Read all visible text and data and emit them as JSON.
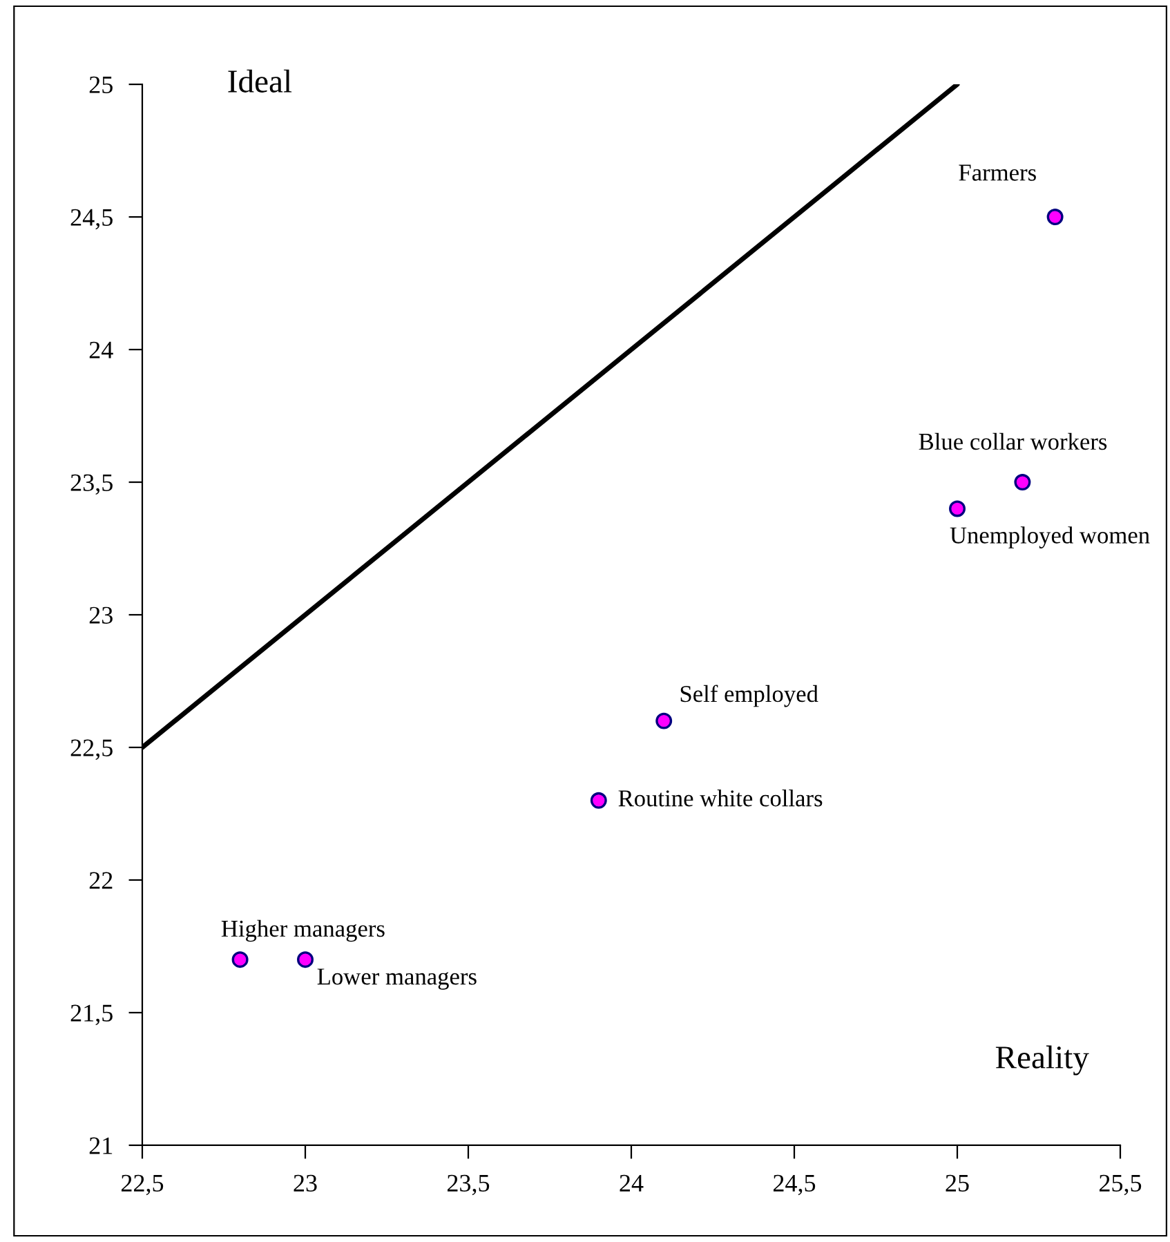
{
  "chart_data": {
    "type": "scatter",
    "xlabel": "Reality",
    "ylabel": "Ideal",
    "series": [
      {
        "color": "#ff00ff",
        "marker": "circle",
        "x": [
          25.3,
          25.2,
          25.0,
          24.1,
          23.9,
          22.8,
          23.0
        ],
        "values": [
          24.5,
          23.5,
          23.4,
          22.6,
          22.3,
          21.7,
          21.7
        ]
      },
      {
        "type": "line",
        "color": "#000000",
        "x": [
          22.5,
          25.0
        ],
        "values": [
          22.5,
          25.0
        ]
      }
    ],
    "annotations": [
      {
        "text": "Farmers",
        "x": 25.3,
        "y": 24.5
      },
      {
        "text": "Blue collar workers",
        "x": 25.2,
        "y": 23.5
      },
      {
        "text": "Unemployed women",
        "x": 25.0,
        "y": 23.4
      },
      {
        "text": "Self employed",
        "x": 24.1,
        "y": 22.6
      },
      {
        "text": "Routine white collars",
        "x": 23.9,
        "y": 22.3
      },
      {
        "text": "Higher managers",
        "x": 22.8,
        "y": 21.7
      },
      {
        "text": "Lower managers",
        "x": 23.0,
        "y": 21.7
      }
    ],
    "xlim": [
      22.5,
      25.5
    ],
    "ylim": [
      21,
      25
    ],
    "xticks": [
      {
        "value": 22.5,
        "label": "22,5"
      },
      23,
      {
        "value": 23.5,
        "label": "23,5"
      },
      24,
      {
        "value": 24.5,
        "label": "24,5"
      },
      25,
      {
        "value": 25.5,
        "label": "25,5"
      }
    ],
    "yticks": [
      21,
      {
        "value": 21.5,
        "label": "21,5"
      },
      22,
      {
        "value": 22.5,
        "label": "22,5"
      },
      23,
      {
        "value": 23.5,
        "label": "23,5"
      },
      24,
      {
        "value": 24.5,
        "label": "24,5"
      },
      25
    ],
    "grid": false,
    "legend": false
  }
}
